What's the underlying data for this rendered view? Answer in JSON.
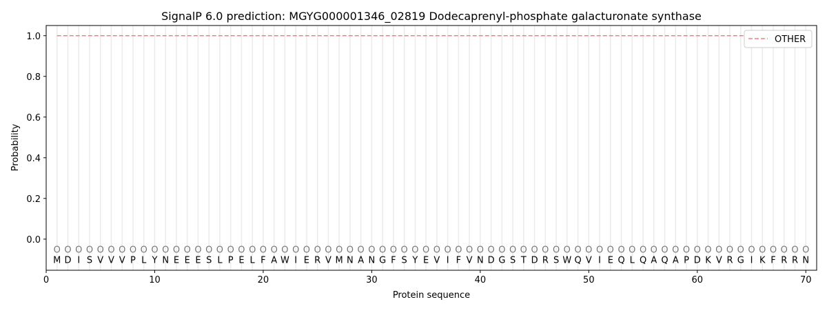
{
  "chart_data": {
    "type": "line",
    "title": "SignalP 6.0 prediction: MGYG000001346_02819 Dodecaprenyl-phosphate galacturonate synthase",
    "xlabel": "Protein sequence",
    "ylabel": "Probability",
    "xlim": [
      0,
      71
    ],
    "ylim": [
      -0.153,
      1.05
    ],
    "xticks": [
      0,
      10,
      20,
      30,
      40,
      50,
      60,
      70
    ],
    "yticks": [
      "0.0",
      "0.2",
      "0.4",
      "0.6",
      "0.8",
      "1.0"
    ],
    "grid": "vertical per residue",
    "legend_position": "top-right",
    "sequence": [
      "M",
      "D",
      "I",
      "S",
      "V",
      "V",
      "V",
      "P",
      "L",
      "Y",
      "N",
      "E",
      "E",
      "E",
      "S",
      "L",
      "P",
      "E",
      "L",
      "F",
      "A",
      "W",
      "I",
      "E",
      "R",
      "V",
      "M",
      "N",
      "A",
      "N",
      "G",
      "F",
      "S",
      "Y",
      "E",
      "V",
      "I",
      "F",
      "V",
      "N",
      "D",
      "G",
      "S",
      "T",
      "D",
      "R",
      "S",
      "W",
      "Q",
      "V",
      "I",
      "E",
      "Q",
      "L",
      "Q",
      "A",
      "Q",
      "A",
      "P",
      "D",
      "K",
      "V",
      "R",
      "G",
      "I",
      "K",
      "F",
      "R",
      "R",
      "N"
    ],
    "predicted_labels": "OOOOOOOOOOOOOOOOOOOOOOOOOOOOOOOOOOOOOOOOOOOOOOOOOOOOOOOOOOOOOOOOOOOOOO",
    "series": [
      {
        "name": "OTHER",
        "color": "#f08080",
        "style": "dashed",
        "x_start": 1,
        "x_end": 70,
        "value": 1.0
      }
    ]
  }
}
